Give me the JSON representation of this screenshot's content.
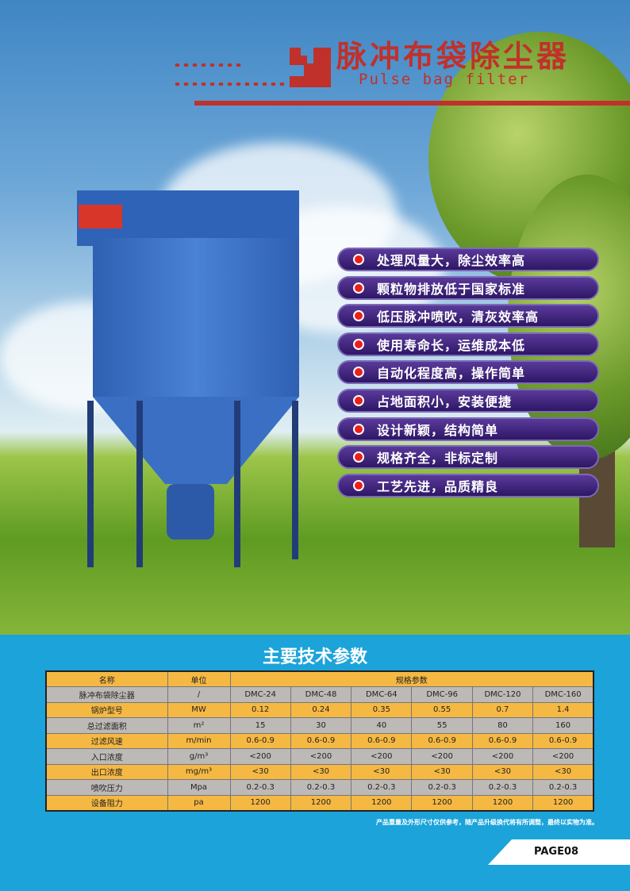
{
  "header": {
    "title_cn": "脉冲布袋除尘器",
    "title_en": "Pulse bag filter"
  },
  "features": [
    "处理风量大，除尘效率高",
    "颗粒物排放低于国家标准",
    "低压脉冲喷吹，清灰效率高",
    "使用寿命长，运维成本低",
    "自动化程度高，操作简单",
    "占地面积小，安装便捷",
    "设计新颖，结构简单",
    "规格齐全，非标定制",
    "工艺先进，品质精良"
  ],
  "section_title": "主要技术参数",
  "table": {
    "headers": [
      "名称",
      "单位",
      "规格参数"
    ],
    "rows": [
      [
        "脉冲布袋除尘器",
        "/",
        "DMC-24",
        "DMC-48",
        "DMC-64",
        "DMC-96",
        "DMC-120",
        "DMC-160"
      ],
      [
        "锅炉型号",
        "MW",
        "0.12",
        "0.24",
        "0.35",
        "0.55",
        "0.7",
        "1.4"
      ],
      [
        "总过滤面积",
        "m²",
        "15",
        "30",
        "40",
        "55",
        "80",
        "160"
      ],
      [
        "过滤风速",
        "m/min",
        "0.6-0.9",
        "0.6-0.9",
        "0.6-0.9",
        "0.6-0.9",
        "0.6-0.9",
        "0.6-0.9"
      ],
      [
        "入口浓度",
        "g/m³",
        "<200",
        "<200",
        "<200",
        "<200",
        "<200",
        "<200"
      ],
      [
        "出口浓度",
        "mg/m³",
        "<30",
        "<30",
        "<30",
        "<30",
        "<30",
        "<30"
      ],
      [
        "喷吹压力",
        "Mpa",
        "0.2-0.3",
        "0.2-0.3",
        "0.2-0.3",
        "0.2-0.3",
        "0.2-0.3",
        "0.2-0.3"
      ],
      [
        "设备阻力",
        "pa",
        "1200",
        "1200",
        "1200",
        "1200",
        "1200",
        "1200"
      ]
    ]
  },
  "note": "产品重量及外形尺寸仅供参考，随产品升级换代将有所调整，最终以实物为准。",
  "page_label": "PAGE08",
  "colors": {
    "accent": "#c0312b",
    "band": "#1ba3da",
    "pill": "#3a2178"
  }
}
